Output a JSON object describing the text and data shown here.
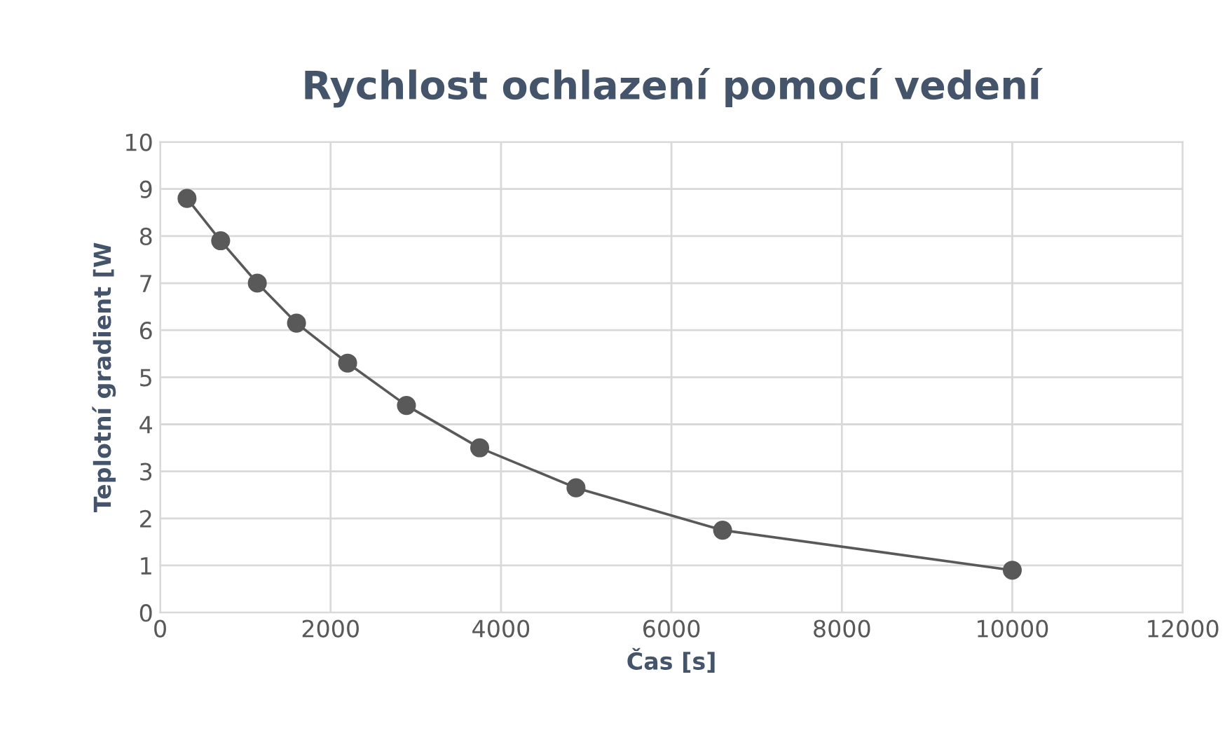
{
  "chart_data": {
    "type": "line",
    "title": "Rychlost ochlazení pomocí vedení",
    "xlabel": "Čas [s]",
    "ylabel": "Teplotní gradient [W",
    "x": [
      315,
      710,
      1140,
      1600,
      2200,
      2890,
      3750,
      4880,
      6600,
      10000
    ],
    "series": [
      {
        "color": "#595959",
        "values": [
          8.8,
          7.9,
          7.0,
          6.15,
          5.3,
          4.4,
          3.5,
          2.65,
          1.75,
          0.9
        ]
      }
    ],
    "xlim": [
      0,
      12000
    ],
    "xticks": [
      0,
      2000,
      4000,
      6000,
      8000,
      10000,
      12000
    ],
    "ylim": [
      0,
      10
    ],
    "yticks": [
      0,
      1,
      2,
      3,
      4,
      5,
      6,
      7,
      8,
      9,
      10
    ],
    "grid": true,
    "marker": "circle",
    "line_style": "solid",
    "legend": false
  }
}
